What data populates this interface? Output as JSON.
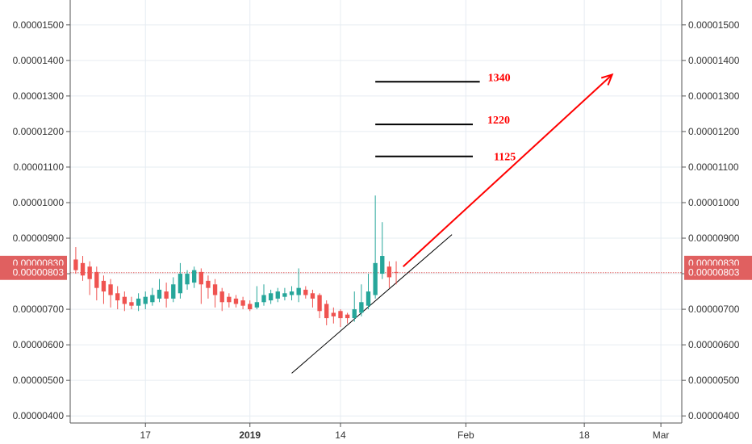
{
  "chart_data": {
    "type": "candlestick",
    "title": "",
    "xlabel": "",
    "ylabel": "",
    "ylim": [
      3.8e-06,
      1.57e-05
    ],
    "grid": true,
    "x_ticks": [
      {
        "label": "17",
        "day": 17
      },
      {
        "label": "2019",
        "day": 32,
        "bold": true
      },
      {
        "label": "14",
        "day": 45
      },
      {
        "label": "Feb",
        "day": 63
      },
      {
        "label": "18",
        "day": 80
      },
      {
        "label": "Mar",
        "day": 91
      }
    ],
    "x_range": [
      7,
      94
    ],
    "y_ticks": [
      "0.00000400",
      "0.00000500",
      "0.00000600",
      "0.00000700",
      "0.00000800",
      "0.00000900",
      "0.00001000",
      "0.00001100",
      "0.00001200",
      "0.00001300",
      "0.00001400",
      "0.00001500"
    ],
    "price_tags": [
      {
        "label": "0.00000830",
        "value": 8.3e-06
      },
      {
        "label": "0.00000803",
        "value": 8.03e-06
      }
    ],
    "current_price_line": 8.03e-06,
    "candles": [
      {
        "day": 7,
        "open": 8.4,
        "high": 8.75,
        "low": 8.0,
        "close": 8.1
      },
      {
        "day": 8,
        "open": 8.3,
        "high": 8.5,
        "low": 7.8,
        "close": 7.95
      },
      {
        "day": 9,
        "open": 8.2,
        "high": 8.35,
        "low": 7.4,
        "close": 7.85
      },
      {
        "day": 10,
        "open": 8.05,
        "high": 8.2,
        "low": 7.25,
        "close": 7.6
      },
      {
        "day": 11,
        "open": 7.8,
        "high": 7.95,
        "low": 7.15,
        "close": 7.5
      },
      {
        "day": 12,
        "open": 7.7,
        "high": 7.85,
        "low": 7.05,
        "close": 7.4
      },
      {
        "day": 13,
        "open": 7.45,
        "high": 7.65,
        "low": 7.0,
        "close": 7.25
      },
      {
        "day": 14,
        "open": 7.35,
        "high": 7.5,
        "low": 6.95,
        "close": 7.15
      },
      {
        "day": 15,
        "open": 7.2,
        "high": 7.35,
        "low": 7.0,
        "close": 7.1
      },
      {
        "day": 16,
        "open": 7.1,
        "high": 7.45,
        "low": 6.95,
        "close": 7.3
      },
      {
        "day": 17,
        "open": 7.15,
        "high": 7.5,
        "low": 7.0,
        "close": 7.35
      },
      {
        "day": 18,
        "open": 7.2,
        "high": 7.6,
        "low": 7.1,
        "close": 7.4
      },
      {
        "day": 19,
        "open": 7.3,
        "high": 7.85,
        "low": 7.2,
        "close": 7.55
      },
      {
        "day": 20,
        "open": 7.5,
        "high": 7.75,
        "low": 7.05,
        "close": 7.3
      },
      {
        "day": 21,
        "open": 7.3,
        "high": 7.9,
        "low": 7.2,
        "close": 7.7
      },
      {
        "day": 22,
        "open": 7.45,
        "high": 8.3,
        "low": 7.3,
        "close": 8.0
      },
      {
        "day": 23,
        "open": 7.7,
        "high": 8.1,
        "low": 7.55,
        "close": 8.0
      },
      {
        "day": 24,
        "open": 7.75,
        "high": 8.2,
        "low": 7.6,
        "close": 8.1
      },
      {
        "day": 25,
        "open": 8.05,
        "high": 8.15,
        "low": 7.15,
        "close": 7.7
      },
      {
        "day": 26,
        "open": 7.8,
        "high": 7.95,
        "low": 7.3,
        "close": 7.6
      },
      {
        "day": 27,
        "open": 7.7,
        "high": 7.85,
        "low": 7.05,
        "close": 7.4
      },
      {
        "day": 28,
        "open": 7.5,
        "high": 7.6,
        "low": 6.95,
        "close": 7.2
      },
      {
        "day": 29,
        "open": 7.35,
        "high": 7.45,
        "low": 7.05,
        "close": 7.2
      },
      {
        "day": 30,
        "open": 7.3,
        "high": 7.4,
        "low": 7.05,
        "close": 7.15
      },
      {
        "day": 31,
        "open": 7.25,
        "high": 7.35,
        "low": 7.0,
        "close": 7.1
      },
      {
        "day": 32,
        "open": 7.15,
        "high": 7.25,
        "low": 6.95,
        "close": 7.0
      },
      {
        "day": 33,
        "open": 7.05,
        "high": 7.65,
        "low": 7.0,
        "close": 7.2
      },
      {
        "day": 34,
        "open": 7.2,
        "high": 7.7,
        "low": 7.1,
        "close": 7.4
      },
      {
        "day": 35,
        "open": 7.25,
        "high": 7.55,
        "low": 7.15,
        "close": 7.45
      },
      {
        "day": 36,
        "open": 7.3,
        "high": 7.6,
        "low": 7.2,
        "close": 7.5
      },
      {
        "day": 37,
        "open": 7.35,
        "high": 7.6,
        "low": 7.25,
        "close": 7.45
      },
      {
        "day": 38,
        "open": 7.4,
        "high": 7.65,
        "low": 7.25,
        "close": 7.5
      },
      {
        "day": 39,
        "open": 7.4,
        "high": 8.15,
        "low": 7.2,
        "close": 7.6
      },
      {
        "day": 40,
        "open": 7.55,
        "high": 7.65,
        "low": 7.3,
        "close": 7.4
      },
      {
        "day": 41,
        "open": 7.45,
        "high": 7.55,
        "low": 7.05,
        "close": 7.3
      },
      {
        "day": 42,
        "open": 7.4,
        "high": 7.45,
        "low": 6.75,
        "close": 6.95
      },
      {
        "day": 43,
        "open": 7.15,
        "high": 7.25,
        "low": 6.55,
        "close": 6.75
      },
      {
        "day": 44,
        "open": 6.9,
        "high": 7.05,
        "low": 6.6,
        "close": 6.8
      },
      {
        "day": 45,
        "open": 6.95,
        "high": 7.0,
        "low": 6.5,
        "close": 6.75
      },
      {
        "day": 46,
        "open": 6.85,
        "high": 6.9,
        "low": 6.6,
        "close": 6.75
      },
      {
        "day": 47,
        "open": 6.75,
        "high": 7.5,
        "low": 6.65,
        "close": 7.0
      },
      {
        "day": 48,
        "open": 6.9,
        "high": 7.7,
        "low": 6.8,
        "close": 7.2
      },
      {
        "day": 49,
        "open": 7.1,
        "high": 8.0,
        "low": 7.0,
        "close": 7.5
      },
      {
        "day": 50,
        "open": 7.4,
        "high": 10.2,
        "low": 7.3,
        "close": 8.3
      },
      {
        "day": 51,
        "open": 8.0,
        "high": 9.45,
        "low": 7.85,
        "close": 8.5
      },
      {
        "day": 52,
        "open": 8.2,
        "high": 8.35,
        "low": 7.6,
        "close": 7.9
      },
      {
        "day": 53,
        "open": 8.05,
        "high": 8.35,
        "low": 7.7,
        "close": 8.03
      }
    ],
    "drawings": {
      "resistance_levels": [
        {
          "value": 1.34e-05,
          "label": "1340",
          "day_from": 50,
          "day_to": 65
        },
        {
          "value": 1.22e-05,
          "label": "1220",
          "day_from": 50,
          "day_to": 64
        },
        {
          "value": 1.13e-05,
          "label": "1125",
          "day_from": 50,
          "day_to": 64
        }
      ],
      "trendline": {
        "day_from": 38,
        "value_from": 5.2e-06,
        "day_to": 61,
        "value_to": 9.1e-06
      },
      "arrow": {
        "day_from": 54,
        "value_from": 8.2e-06,
        "day_to": 84,
        "value_to": 1.36e-05
      }
    },
    "colors": {
      "up": "#26a69a",
      "down": "#ef5350",
      "price_tag": "#e06060",
      "grid": "#e6ecf2",
      "annotation": "#ff0000"
    }
  }
}
